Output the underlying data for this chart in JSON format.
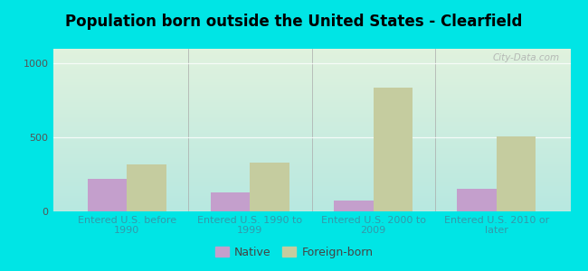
{
  "title": "Population born outside the United States - Clearfield",
  "categories": [
    "Entered U.S. before\n1990",
    "Entered U.S. 1990 to\n1999",
    "Entered U.S. 2000 to\n2009",
    "Entered U.S. 2010 or\nlater"
  ],
  "native_values": [
    220,
    130,
    75,
    155
  ],
  "foreign_values": [
    320,
    330,
    840,
    510
  ],
  "native_color": "#c49fcc",
  "foreign_color": "#c5cc9f",
  "background_outer": "#00e5e5",
  "bg_top_left": "#ddeedd",
  "bg_top_right": "#f0f8f0",
  "bg_bottom": "#b8e8e0",
  "ylim": [
    0,
    1100
  ],
  "yticks": [
    0,
    500,
    1000
  ],
  "bar_width": 0.32,
  "title_fontsize": 12,
  "tick_fontsize": 8,
  "legend_fontsize": 9,
  "watermark": "City-Data.com"
}
